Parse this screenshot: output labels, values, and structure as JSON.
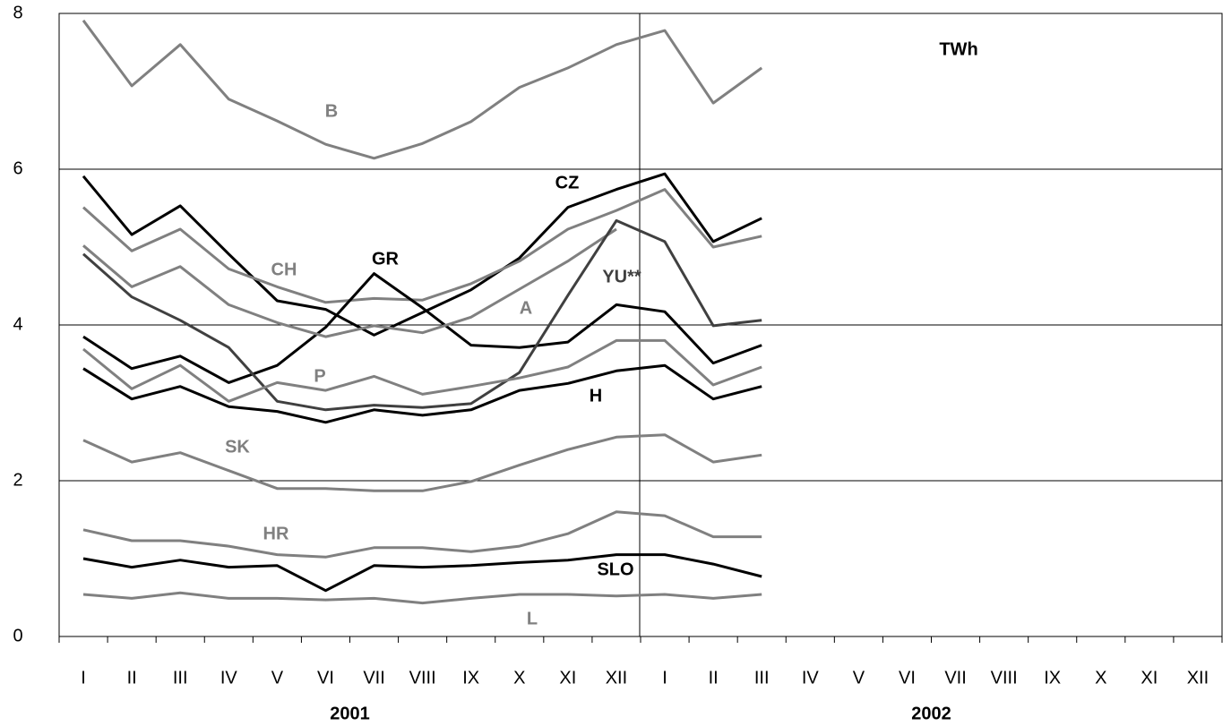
{
  "chart_data": {
    "type": "line",
    "annotation": "TWh",
    "categories": [
      "I",
      "II",
      "III",
      "IV",
      "V",
      "VI",
      "VII",
      "VIII",
      "IX",
      "X",
      "XI",
      "XII",
      "I",
      "II",
      "III",
      "IV",
      "V",
      "VI",
      "VII",
      "VIII",
      "IX",
      "X",
      "XI",
      "XII"
    ],
    "years": [
      "2001",
      "2002"
    ],
    "ylim": [
      0,
      8
    ],
    "yticks": [
      0,
      2,
      4,
      6,
      8
    ],
    "grid": true,
    "series": [
      {
        "name": "B",
        "color": "#808080",
        "values": [
          7.91,
          7.07,
          7.6,
          6.9,
          6.62,
          6.32,
          6.14,
          6.33,
          6.61,
          7.05,
          7.3,
          7.6,
          7.78,
          6.85,
          7.3,
          null,
          null,
          null,
          null,
          null,
          null,
          null,
          null,
          null
        ]
      },
      {
        "name": "CZ",
        "color": "#000000",
        "values": [
          5.91,
          5.16,
          5.53,
          4.91,
          4.31,
          4.2,
          3.87,
          4.16,
          4.45,
          4.86,
          5.51,
          5.74,
          5.94,
          5.07,
          5.37,
          null,
          null,
          null,
          null,
          null,
          null,
          null,
          null,
          null
        ]
      },
      {
        "name": "CH",
        "color": "#808080",
        "values": [
          5.51,
          4.95,
          5.23,
          4.72,
          4.49,
          4.29,
          4.34,
          4.32,
          4.53,
          4.82,
          5.23,
          5.47,
          5.74,
          5.0,
          5.14,
          null,
          null,
          null,
          null,
          null,
          null,
          null,
          null,
          null
        ]
      },
      {
        "name": "GR",
        "color": "#000000",
        "values": [
          3.85,
          3.44,
          3.6,
          3.26,
          3.48,
          3.97,
          4.66,
          4.22,
          3.74,
          3.71,
          3.78,
          4.26,
          4.17,
          3.51,
          3.74,
          null,
          null,
          null,
          null,
          null,
          null,
          null,
          null,
          null
        ]
      },
      {
        "name": "A",
        "color": "#808080",
        "values": [
          5.02,
          4.49,
          4.75,
          4.26,
          4.03,
          3.85,
          3.99,
          3.9,
          4.1,
          4.46,
          4.82,
          5.23,
          null,
          null,
          null,
          null,
          null,
          null,
          null,
          null,
          null,
          null,
          null,
          null
        ]
      },
      {
        "name": "YU**",
        "color": "#404040",
        "values": [
          4.91,
          4.36,
          4.06,
          3.71,
          3.02,
          2.91,
          2.97,
          2.94,
          2.99,
          3.39,
          4.38,
          5.34,
          5.07,
          3.99,
          4.06,
          null,
          null,
          null,
          null,
          null,
          null,
          null,
          null,
          null
        ]
      },
      {
        "name": "P",
        "color": "#808080",
        "values": [
          3.69,
          3.18,
          3.48,
          3.02,
          3.26,
          3.16,
          3.34,
          3.11,
          3.21,
          3.32,
          3.46,
          3.8,
          3.8,
          3.23,
          3.46,
          null,
          null,
          null,
          null,
          null,
          null,
          null,
          null,
          null
        ]
      },
      {
        "name": "H",
        "color": "#000000",
        "values": [
          3.44,
          3.05,
          3.21,
          2.95,
          2.89,
          2.75,
          2.91,
          2.84,
          2.91,
          3.16,
          3.25,
          3.41,
          3.48,
          3.05,
          3.21,
          null,
          null,
          null,
          null,
          null,
          null,
          null,
          null,
          null
        ]
      },
      {
        "name": "SK",
        "color": "#808080",
        "values": [
          2.52,
          2.24,
          2.36,
          2.13,
          1.9,
          1.9,
          1.87,
          1.87,
          1.99,
          2.2,
          2.4,
          2.56,
          2.59,
          2.24,
          2.33,
          null,
          null,
          null,
          null,
          null,
          null,
          null,
          null,
          null
        ]
      },
      {
        "name": "HR",
        "color": "#808080",
        "values": [
          1.37,
          1.23,
          1.23,
          1.16,
          1.05,
          1.02,
          1.14,
          1.14,
          1.09,
          1.16,
          1.32,
          1.6,
          1.55,
          1.28,
          1.28,
          null,
          null,
          null,
          null,
          null,
          null,
          null,
          null,
          null
        ]
      },
      {
        "name": "SLO",
        "color": "#000000",
        "values": [
          1.0,
          0.89,
          0.98,
          0.89,
          0.91,
          0.59,
          0.91,
          0.89,
          0.91,
          0.95,
          0.98,
          1.05,
          1.05,
          0.93,
          0.77,
          null,
          null,
          null,
          null,
          null,
          null,
          null,
          null,
          null
        ]
      },
      {
        "name": "L",
        "color": "#808080",
        "values": [
          0.54,
          0.49,
          0.56,
          0.49,
          0.49,
          0.47,
          0.49,
          0.43,
          0.49,
          0.54,
          0.54,
          0.52,
          0.54,
          0.49,
          0.54,
          null,
          null,
          null,
          null,
          null,
          null,
          null,
          null,
          null
        ]
      }
    ]
  }
}
